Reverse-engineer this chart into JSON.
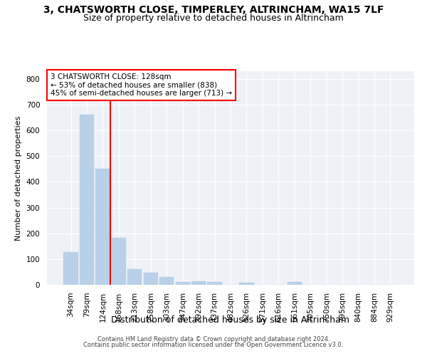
{
  "title": "3, CHATSWORTH CLOSE, TIMPERLEY, ALTRINCHAM, WA15 7LF",
  "subtitle": "Size of property relative to detached houses in Altrincham",
  "xlabel": "Distribution of detached houses by size in Altrincham",
  "ylabel": "Number of detached properties",
  "categories": [
    "34sqm",
    "79sqm",
    "124sqm",
    "168sqm",
    "213sqm",
    "258sqm",
    "303sqm",
    "347sqm",
    "392sqm",
    "437sqm",
    "482sqm",
    "526sqm",
    "571sqm",
    "616sqm",
    "661sqm",
    "705sqm",
    "750sqm",
    "795sqm",
    "840sqm",
    "884sqm",
    "929sqm"
  ],
  "values": [
    128,
    660,
    452,
    183,
    62,
    47,
    30,
    12,
    15,
    10,
    0,
    7,
    0,
    0,
    10,
    0,
    0,
    0,
    0,
    0,
    0
  ],
  "bar_color": "#b8d0e8",
  "bar_edgecolor": "#b8d0e8",
  "property_line_color": "red",
  "property_line_bar_index": 2,
  "annotation_text": "3 CHATSWORTH CLOSE: 128sqm\n← 53% of detached houses are smaller (838)\n45% of semi-detached houses are larger (713) →",
  "annotation_box_edgecolor": "red",
  "annotation_box_facecolor": "white",
  "ylim": [
    0,
    830
  ],
  "yticks": [
    0,
    100,
    200,
    300,
    400,
    500,
    600,
    700,
    800
  ],
  "background_color": "#eef2f8",
  "grid_color": "#ffffff",
  "footer1": "Contains HM Land Registry data © Crown copyright and database right 2024.",
  "footer2": "Contains public sector information licensed under the Open Government Licence v3.0.",
  "title_fontsize": 10,
  "subtitle_fontsize": 9,
  "ylabel_fontsize": 8,
  "xlabel_fontsize": 9,
  "tick_fontsize": 7.5,
  "annotation_fontsize": 7.5,
  "footer_fontsize": 6
}
